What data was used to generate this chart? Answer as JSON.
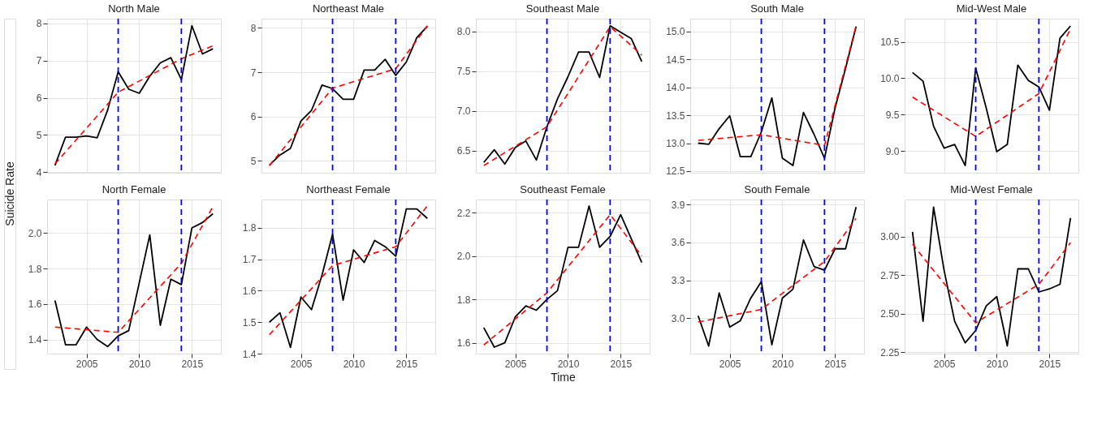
{
  "chart_data": [
    {
      "type": "line",
      "title": "North Male",
      "x": [
        2002,
        2003,
        2004,
        2005,
        2006,
        2007,
        2008,
        2009,
        2010,
        2011,
        2012,
        2013,
        2014,
        2015,
        2016,
        2017
      ],
      "xlim": [
        2001.25,
        2017.75
      ],
      "xticks": [
        2005,
        2010,
        2015
      ],
      "ylim": [
        3.98,
        8.13
      ],
      "yticks": [
        4,
        5,
        6,
        7,
        8
      ],
      "grid": true,
      "tick_labels": "y",
      "series": [
        {
          "color": "#000000",
          "line_style": "solid",
          "values": [
            4.18,
            4.94,
            4.94,
            4.97,
            4.92,
            5.67,
            6.7,
            6.23,
            6.12,
            6.58,
            6.94,
            7.08,
            6.49,
            7.94,
            7.18,
            7.32
          ]
        },
        {
          "type": "line",
          "x": [
            2002,
            2008,
            2014,
            2017
          ],
          "color": "#ff0000",
          "line_style": "dashed",
          "values": [
            4.22,
            6.15,
            7.05,
            7.4
          ]
        }
      ],
      "ref_lines": [
        {
          "axis": "x",
          "value": 2008,
          "color": "#0000ff",
          "line_style": "dashed"
        },
        {
          "axis": "x",
          "value": 2014,
          "color": "#0000ff",
          "line_style": "dashed"
        }
      ]
    },
    {
      "type": "line",
      "title": "Northeast Male",
      "x": [
        2002,
        2003,
        2004,
        2005,
        2006,
        2007,
        2008,
        2009,
        2010,
        2011,
        2012,
        2013,
        2014,
        2015,
        2016,
        2017
      ],
      "xlim": [
        2001.25,
        2017.75
      ],
      "xticks": [
        2005,
        2010,
        2015
      ],
      "ylim": [
        4.73,
        8.21
      ],
      "yticks": [
        5,
        6,
        7,
        8
      ],
      "grid": true,
      "tick_labels": "y",
      "series": [
        {
          "color": "#000000",
          "line_style": "solid",
          "values": [
            4.9,
            5.13,
            5.28,
            5.9,
            6.14,
            6.71,
            6.63,
            6.39,
            6.39,
            7.05,
            7.05,
            7.29,
            6.93,
            7.23,
            7.78,
            8.04
          ]
        },
        {
          "type": "line",
          "x": [
            2002,
            2008,
            2014,
            2017
          ],
          "color": "#ff0000",
          "line_style": "dashed",
          "values": [
            4.89,
            6.64,
            7.08,
            8.05
          ]
        }
      ],
      "ref_lines": [
        {
          "axis": "x",
          "value": 2008,
          "color": "#0000ff",
          "line_style": "dashed"
        },
        {
          "axis": "x",
          "value": 2014,
          "color": "#0000ff",
          "line_style": "dashed"
        }
      ]
    },
    {
      "type": "line",
      "title": "Southeast Male",
      "x": [
        2002,
        2003,
        2004,
        2005,
        2006,
        2007,
        2008,
        2009,
        2010,
        2011,
        2012,
        2013,
        2014,
        2015,
        2016,
        2017
      ],
      "xlim": [
        2001.25,
        2017.75
      ],
      "xticks": [
        2005,
        2010,
        2015
      ],
      "ylim": [
        6.22,
        8.16
      ],
      "yticks": [
        6.5,
        {
          "value": 7,
          "label": "7.0"
        },
        7.5,
        {
          "value": 8,
          "label": "8.0"
        }
      ],
      "grid": true,
      "tick_labels": "y",
      "series": [
        {
          "color": "#000000",
          "line_style": "solid",
          "values": [
            6.35,
            6.51,
            6.33,
            6.54,
            6.62,
            6.38,
            6.8,
            7.15,
            7.43,
            7.74,
            7.74,
            7.42,
            8.07,
            7.99,
            7.91,
            7.62
          ]
        },
        {
          "type": "line",
          "x": [
            2002,
            2008,
            2014,
            2017
          ],
          "color": "#ff0000",
          "line_style": "dashed",
          "values": [
            6.31,
            6.8,
            8.06,
            7.7
          ]
        }
      ],
      "ref_lines": [
        {
          "axis": "x",
          "value": 2008,
          "color": "#0000ff",
          "line_style": "dashed"
        },
        {
          "axis": "x",
          "value": 2014,
          "color": "#0000ff",
          "line_style": "dashed"
        }
      ]
    },
    {
      "type": "line",
      "title": "South Male",
      "x": [
        2002,
        2003,
        2004,
        2005,
        2006,
        2007,
        2008,
        2009,
        2010,
        2011,
        2012,
        2013,
        2014,
        2015,
        2016,
        2017
      ],
      "xlim": [
        2001.25,
        2017.75
      ],
      "xticks": [
        2005,
        2010,
        2015
      ],
      "ylim": [
        12.47,
        15.23
      ],
      "yticks": [
        12.5,
        {
          "value": 13,
          "label": "13.0"
        },
        13.5,
        {
          "value": 14,
          "label": "14.0"
        },
        14.5,
        {
          "value": 15,
          "label": "15.0"
        }
      ],
      "grid": true,
      "tick_labels": "y",
      "series": [
        {
          "color": "#000000",
          "line_style": "solid",
          "values": [
            13.0,
            12.98,
            13.26,
            13.49,
            12.76,
            12.76,
            13.2,
            13.81,
            12.73,
            12.6,
            13.55,
            13.16,
            12.73,
            13.63,
            14.34,
            15.09
          ]
        },
        {
          "type": "line",
          "x": [
            2002,
            2008,
            2014,
            2017
          ],
          "color": "#ff0000",
          "line_style": "dashed",
          "values": [
            13.05,
            13.15,
            12.96,
            15.1
          ]
        }
      ],
      "ref_lines": [
        {
          "axis": "x",
          "value": 2008,
          "color": "#0000ff",
          "line_style": "dashed"
        },
        {
          "axis": "x",
          "value": 2014,
          "color": "#0000ff",
          "line_style": "dashed"
        }
      ]
    },
    {
      "type": "line",
      "title": "Mid-West Male",
      "x": [
        2002,
        2003,
        2004,
        2005,
        2006,
        2007,
        2008,
        2009,
        2010,
        2011,
        2012,
        2013,
        2014,
        2015,
        2016,
        2017
      ],
      "xlim": [
        2001.25,
        2017.75
      ],
      "xticks": [
        2005,
        2010,
        2015
      ],
      "ylim": [
        8.7,
        10.82
      ],
      "yticks": [
        {
          "value": 9,
          "label": "9.0"
        },
        9.5,
        {
          "value": 10,
          "label": "10.0"
        },
        10.5
      ],
      "grid": true,
      "tick_labels": "y",
      "series": [
        {
          "color": "#000000",
          "line_style": "solid",
          "values": [
            10.08,
            9.96,
            9.34,
            9.04,
            9.09,
            8.8,
            10.14,
            9.59,
            8.99,
            9.09,
            10.18,
            9.97,
            9.88,
            9.56,
            10.55,
            10.72
          ]
        },
        {
          "type": "line",
          "x": [
            2002,
            2008,
            2014,
            2017
          ],
          "color": "#ff0000",
          "line_style": "dashed",
          "values": [
            9.74,
            9.2,
            9.79,
            10.68
          ]
        }
      ],
      "ref_lines": [
        {
          "axis": "x",
          "value": 2008,
          "color": "#0000ff",
          "line_style": "dashed"
        },
        {
          "axis": "x",
          "value": 2014,
          "color": "#0000ff",
          "line_style": "dashed"
        }
      ]
    },
    {
      "type": "line",
      "title": "North Female",
      "ylabel": "Suicide Rate",
      "x": [
        2002,
        2003,
        2004,
        2005,
        2006,
        2007,
        2008,
        2009,
        2010,
        2011,
        2012,
        2013,
        2014,
        2015,
        2016,
        2017
      ],
      "xlim": [
        2001.25,
        2017.75
      ],
      "xticks": [
        2005,
        2010,
        2015
      ],
      "ylim": [
        1.32,
        2.19
      ],
      "yticks": [
        1.4,
        1.6,
        1.8,
        {
          "value": 2,
          "label": "2.0"
        }
      ],
      "grid": true,
      "series": [
        {
          "color": "#000000",
          "line_style": "solid",
          "values": [
            1.62,
            1.37,
            1.37,
            1.47,
            1.4,
            1.36,
            1.42,
            1.45,
            1.72,
            1.99,
            1.48,
            1.74,
            1.71,
            2.03,
            2.06,
            2.11
          ]
        },
        {
          "type": "line",
          "x": [
            2002,
            2008,
            2014,
            2017
          ],
          "color": "#ff0000",
          "line_style": "dashed",
          "values": [
            1.47,
            1.44,
            1.83,
            2.15
          ]
        }
      ],
      "ref_lines": [
        {
          "axis": "x",
          "value": 2008,
          "color": "#0000ff",
          "line_style": "dashed"
        },
        {
          "axis": "x",
          "value": 2014,
          "color": "#0000ff",
          "line_style": "dashed"
        }
      ]
    },
    {
      "type": "line",
      "title": "Northeast Female",
      "x": [
        2002,
        2003,
        2004,
        2005,
        2006,
        2007,
        2008,
        2009,
        2010,
        2011,
        2012,
        2013,
        2014,
        2015,
        2016,
        2017
      ],
      "xlim": [
        2001.25,
        2017.75
      ],
      "xticks": [
        2005,
        2010,
        2015
      ],
      "ylim": [
        1.4,
        1.89
      ],
      "yticks": [
        1.4,
        1.5,
        1.6,
        1.7,
        1.8
      ],
      "grid": true,
      "series": [
        {
          "color": "#000000",
          "line_style": "solid",
          "values": [
            1.5,
            1.53,
            1.42,
            1.58,
            1.54,
            1.65,
            1.78,
            1.57,
            1.73,
            1.69,
            1.76,
            1.74,
            1.71,
            1.86,
            1.86,
            1.83
          ]
        },
        {
          "type": "line",
          "x": [
            2002,
            2008,
            2014,
            2017
          ],
          "color": "#ff0000",
          "line_style": "dashed",
          "values": [
            1.46,
            1.68,
            1.74,
            1.87
          ]
        }
      ],
      "ref_lines": [
        {
          "axis": "x",
          "value": 2008,
          "color": "#0000ff",
          "line_style": "dashed"
        },
        {
          "axis": "x",
          "value": 2014,
          "color": "#0000ff",
          "line_style": "dashed"
        }
      ]
    },
    {
      "type": "line",
      "title": "Southeast Female",
      "xlabel": "Time",
      "x": [
        2002,
        2003,
        2004,
        2005,
        2006,
        2007,
        2008,
        2009,
        2010,
        2011,
        2012,
        2013,
        2014,
        2015,
        2016,
        2017
      ],
      "xlim": [
        2001.25,
        2017.75
      ],
      "xticks": [
        2005,
        2010,
        2015
      ],
      "ylim": [
        1.55,
        2.26
      ],
      "yticks": [
        1.6,
        1.8,
        {
          "value": 2,
          "label": "2.0"
        },
        2.2
      ],
      "grid": true,
      "series": [
        {
          "color": "#000000",
          "line_style": "solid",
          "values": [
            1.67,
            1.58,
            1.6,
            1.72,
            1.77,
            1.75,
            1.8,
            1.84,
            2.04,
            2.04,
            2.23,
            2.04,
            2.09,
            2.19,
            2.08,
            1.97
          ]
        },
        {
          "type": "line",
          "x": [
            2002,
            2008,
            2014,
            2017
          ],
          "color": "#ff0000",
          "line_style": "dashed",
          "values": [
            1.59,
            1.83,
            2.19,
            2.0
          ]
        }
      ],
      "ref_lines": [
        {
          "axis": "x",
          "value": 2008,
          "color": "#0000ff",
          "line_style": "dashed"
        },
        {
          "axis": "x",
          "value": 2014,
          "color": "#0000ff",
          "line_style": "dashed"
        }
      ]
    },
    {
      "type": "line",
      "title": "South Female",
      "x": [
        2002,
        2003,
        2004,
        2005,
        2006,
        2007,
        2008,
        2009,
        2010,
        2011,
        2012,
        2013,
        2014,
        2015,
        2016,
        2017
      ],
      "xlim": [
        2001.25,
        2017.75
      ],
      "xticks": [
        2005,
        2010,
        2015
      ],
      "ylim": [
        2.72,
        3.94
      ],
      "yticks": [
        {
          "value": 3,
          "label": "3.0"
        },
        3.3,
        3.6,
        3.9
      ],
      "grid": true,
      "series": [
        {
          "color": "#000000",
          "line_style": "solid",
          "values": [
            3.02,
            2.78,
            3.2,
            2.93,
            2.98,
            3.16,
            3.29,
            2.79,
            3.16,
            3.23,
            3.62,
            3.41,
            3.38,
            3.55,
            3.55,
            3.88
          ]
        },
        {
          "type": "line",
          "x": [
            2002,
            2008,
            2014,
            2017
          ],
          "color": "#ff0000",
          "line_style": "dashed",
          "values": [
            2.97,
            3.07,
            3.45,
            3.79
          ]
        }
      ],
      "ref_lines": [
        {
          "axis": "x",
          "value": 2008,
          "color": "#0000ff",
          "line_style": "dashed"
        },
        {
          "axis": "x",
          "value": 2014,
          "color": "#0000ff",
          "line_style": "dashed"
        }
      ]
    },
    {
      "type": "line",
      "title": "Mid-West Female",
      "x": [
        2002,
        2003,
        2004,
        2005,
        2006,
        2007,
        2008,
        2009,
        2010,
        2011,
        2012,
        2013,
        2014,
        2015,
        2016,
        2017
      ],
      "xlim": [
        2001.25,
        2017.75
      ],
      "xticks": [
        2005,
        2010,
        2015
      ],
      "ylim": [
        2.24,
        3.24
      ],
      "yticks": [
        {
          "value": 2.25,
          "label": "2.25"
        },
        {
          "value": 2.5,
          "label": "2.50"
        },
        {
          "value": 2.75,
          "label": "2.75"
        },
        {
          "value": 3,
          "label": "3.00"
        }
      ],
      "grid": true,
      "series": [
        {
          "color": "#000000",
          "line_style": "solid",
          "values": [
            3.03,
            2.45,
            3.19,
            2.78,
            2.45,
            2.31,
            2.39,
            2.55,
            2.61,
            2.29,
            2.79,
            2.79,
            2.64,
            2.66,
            2.69,
            3.12
          ]
        },
        {
          "type": "line",
          "x": [
            2002,
            2008,
            2014,
            2017
          ],
          "color": "#ff0000",
          "line_style": "dashed",
          "values": [
            2.95,
            2.44,
            2.69,
            2.96
          ]
        }
      ],
      "ref_lines": [
        {
          "axis": "x",
          "value": 2008,
          "color": "#0000ff",
          "line_style": "dashed"
        },
        {
          "axis": "x",
          "value": 2014,
          "color": "#0000ff",
          "line_style": "dashed"
        }
      ]
    }
  ]
}
